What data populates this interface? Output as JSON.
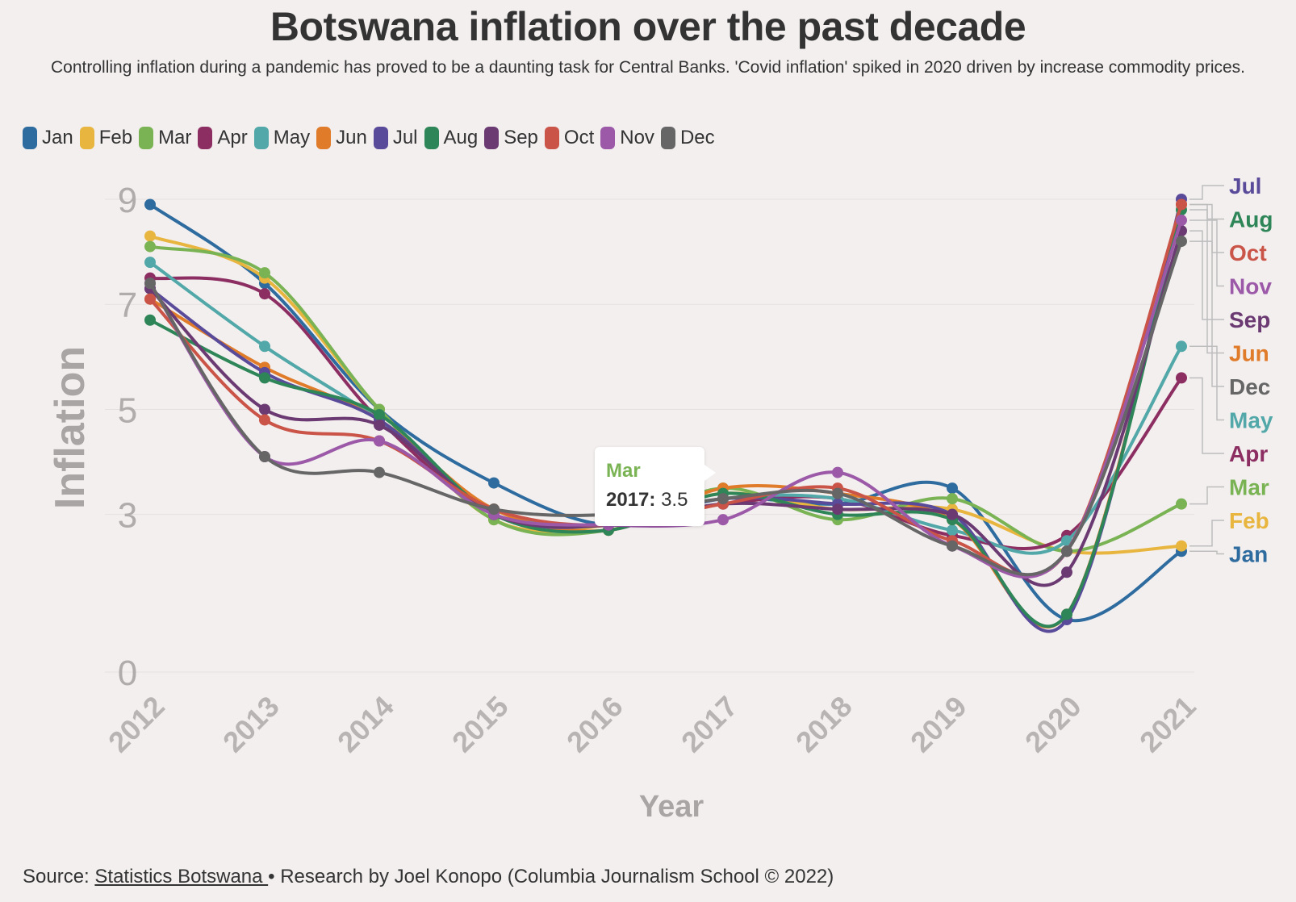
{
  "title": "Botswana inflation over the past decade",
  "subtitle": "Controlling inflation during a pandemic has proved to be a daunting task for Central Banks. 'Covid inflation' spiked in 2020 driven by increase commodity prices.",
  "footer": {
    "source_prefix": "Source: ",
    "source_link": "Statistics Botswana ",
    "credit": "• Research by Joel Konopo (Columbia Journalism School © 2022)"
  },
  "tooltip": {
    "series": "Mar",
    "year": "2017:",
    "value": "3.5"
  },
  "chart_data": {
    "type": "line",
    "title": "Botswana inflation over the past decade",
    "xlabel": "Year",
    "ylabel": "Inflation",
    "x": [
      2012,
      2013,
      2014,
      2015,
      2016,
      2017,
      2018,
      2019,
      2020,
      2021
    ],
    "ylim": [
      0,
      9
    ],
    "yticks": [
      0,
      3,
      5,
      7,
      9
    ],
    "grid": true,
    "legend_position": "top-left",
    "series": [
      {
        "name": "Jan",
        "color": "#2e6b9e",
        "values": [
          8.9,
          7.4,
          5.0,
          3.6,
          2.8,
          3.3,
          3.2,
          3.5,
          1.0,
          2.3
        ]
      },
      {
        "name": "Feb",
        "color": "#e8b53e",
        "values": [
          8.3,
          7.5,
          5.0,
          2.9,
          2.8,
          3.4,
          3.1,
          3.1,
          2.3,
          2.4
        ]
      },
      {
        "name": "Mar",
        "color": "#7ab354",
        "values": [
          8.1,
          7.6,
          5.0,
          2.9,
          2.7,
          3.5,
          2.9,
          3.3,
          2.3,
          3.2
        ]
      },
      {
        "name": "Apr",
        "color": "#8c2e62",
        "values": [
          7.5,
          7.2,
          4.8,
          3.0,
          2.8,
          3.2,
          3.3,
          2.6,
          2.6,
          5.6
        ]
      },
      {
        "name": "May",
        "color": "#52a8a8",
        "values": [
          7.8,
          6.2,
          4.8,
          3.1,
          2.8,
          3.3,
          3.3,
          2.7,
          2.5,
          6.2
        ]
      },
      {
        "name": "Jun",
        "color": "#e07b29",
        "values": [
          7.1,
          5.8,
          4.8,
          3.1,
          2.7,
          3.5,
          3.4,
          2.9,
          1.1,
          8.9
        ]
      },
      {
        "name": "Jul",
        "color": "#5a4b9a",
        "values": [
          7.3,
          5.7,
          4.8,
          3.0,
          2.8,
          3.3,
          3.2,
          3.0,
          1.0,
          9.0
        ]
      },
      {
        "name": "Aug",
        "color": "#2e8658",
        "values": [
          6.7,
          5.6,
          4.9,
          3.0,
          2.7,
          3.4,
          3.0,
          2.9,
          1.1,
          8.8
        ]
      },
      {
        "name": "Sep",
        "color": "#6b3a72",
        "values": [
          7.3,
          5.0,
          4.7,
          3.0,
          2.8,
          3.2,
          3.1,
          3.0,
          1.9,
          8.4
        ]
      },
      {
        "name": "Oct",
        "color": "#c95447",
        "values": [
          7.1,
          4.8,
          4.4,
          3.1,
          2.8,
          3.2,
          3.5,
          2.5,
          2.3,
          8.9
        ]
      },
      {
        "name": "Nov",
        "color": "#9b59a8",
        "values": [
          7.4,
          4.1,
          4.4,
          3.0,
          2.8,
          2.9,
          3.8,
          2.4,
          2.3,
          8.6
        ]
      },
      {
        "name": "Dec",
        "color": "#666666",
        "values": [
          7.4,
          4.1,
          3.8,
          3.1,
          3.0,
          3.3,
          3.4,
          2.4,
          2.3,
          8.2
        ]
      }
    ],
    "end_label_order": [
      "Jul",
      "Aug",
      "Oct",
      "Nov",
      "Sep",
      "Jun",
      "Dec",
      "May",
      "Apr",
      "Mar",
      "Feb",
      "Jan"
    ]
  }
}
